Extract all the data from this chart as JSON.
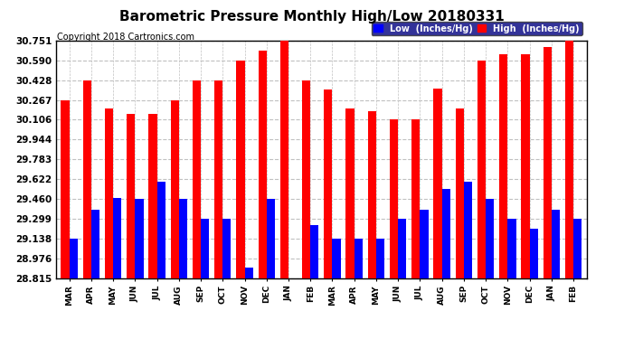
{
  "title": "Barometric Pressure Monthly High/Low 20180331",
  "copyright": "Copyright 2018 Cartronics.com",
  "legend_low": "Low  (Inches/Hg)",
  "legend_high": "High  (Inches/Hg)",
  "months": [
    "MAR",
    "APR",
    "MAY",
    "JUN",
    "JUL",
    "AUG",
    "SEP",
    "OCT",
    "NOV",
    "DEC",
    "JAN",
    "FEB",
    "MAR",
    "APR",
    "MAY",
    "JUN",
    "JUL",
    "AUG",
    "SEP",
    "OCT",
    "NOV",
    "DEC",
    "JAN",
    "FEB"
  ],
  "high_values": [
    30.267,
    30.428,
    30.2,
    30.15,
    30.15,
    30.267,
    30.428,
    30.428,
    30.59,
    30.67,
    30.751,
    30.428,
    30.35,
    30.2,
    30.175,
    30.106,
    30.106,
    30.36,
    30.2,
    30.59,
    30.64,
    30.64,
    30.7,
    30.751
  ],
  "low_values": [
    29.138,
    29.37,
    29.465,
    29.46,
    29.6,
    29.46,
    29.299,
    29.299,
    28.9,
    29.46,
    28.815,
    29.25,
    29.138,
    29.138,
    29.138,
    29.299,
    29.37,
    29.54,
    29.6,
    29.46,
    29.299,
    29.22,
    29.37,
    29.299
  ],
  "ylim_min": 28.815,
  "ylim_max": 30.751,
  "yticks": [
    28.815,
    28.976,
    29.138,
    29.299,
    29.46,
    29.622,
    29.783,
    29.944,
    30.106,
    30.267,
    30.428,
    30.59,
    30.751
  ],
  "bar_color_high": "#ff0000",
  "bar_color_low": "#0000ff",
  "background_color": "#ffffff",
  "grid_color": "#c0c0c0",
  "title_fontsize": 11,
  "copyright_fontsize": 7,
  "bar_width": 0.38,
  "legend_bg": "#000080"
}
